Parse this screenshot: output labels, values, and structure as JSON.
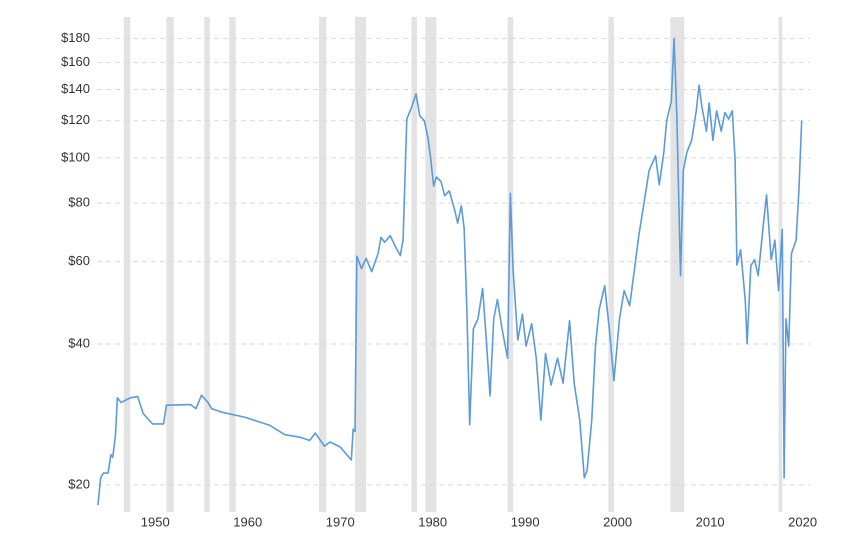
{
  "chart_data": {
    "type": "line",
    "color": "#5b9bd9",
    "shade_color": "#e3e3e3",
    "log_scale": true,
    "grid": true,
    "xlim": [
      1943.7,
      2020.8
    ],
    "xticks": [
      1950,
      1960,
      1970,
      1980,
      1990,
      2000,
      2010,
      2020
    ],
    "ylim": [
      17.5,
      200
    ],
    "yticks": [
      {
        "value": 20,
        "label": "$20"
      },
      {
        "value": 40,
        "label": "$40"
      },
      {
        "value": 60,
        "label": "$60"
      },
      {
        "value": 80,
        "label": "$80"
      },
      {
        "value": 100,
        "label": "$100"
      },
      {
        "value": 120,
        "label": "$120"
      },
      {
        "value": 140,
        "label": "$140"
      },
      {
        "value": 160,
        "label": "$160"
      },
      {
        "value": 180,
        "label": "$180"
      }
    ],
    "shaded_periods": [
      [
        1946.6,
        1947.3
      ],
      [
        1951.2,
        1952.0
      ],
      [
        1955.3,
        1955.9
      ],
      [
        1958.0,
        1958.7
      ],
      [
        1967.7,
        1968.5
      ],
      [
        1971.6,
        1972.8
      ],
      [
        1977.7,
        1978.3
      ],
      [
        1979.2,
        1980.4
      ],
      [
        1988.1,
        1988.7
      ],
      [
        1999.0,
        1999.6
      ],
      [
        2005.7,
        2007.2
      ],
      [
        2017.4,
        2017.8
      ]
    ],
    "x": [
      1943.8,
      1944.1,
      1944.4,
      1944.9,
      1945.2,
      1945.4,
      1945.7,
      1945.9,
      1946.3,
      1947.3,
      1948.1,
      1948.7,
      1949.7,
      1950.9,
      1951.2,
      1953.8,
      1954.4,
      1955.0,
      1955.7,
      1956.1,
      1957.2,
      1959.7,
      1962.4,
      1964.0,
      1965.6,
      1966.7,
      1967.3,
      1968.3,
      1968.9,
      1970.0,
      1971.2,
      1971.4,
      1971.6,
      1971.8,
      1972.3,
      1972.8,
      1973.4,
      1974.1,
      1974.4,
      1974.8,
      1975.4,
      1976.0,
      1976.5,
      1976.8,
      1977.2,
      1977.7,
      1978.2,
      1978.6,
      1979.1,
      1979.5,
      1979.8,
      1980.1,
      1980.4,
      1980.9,
      1981.3,
      1981.8,
      1982.4,
      1982.7,
      1983.1,
      1983.4,
      1983.7,
      1984.0,
      1984.4,
      1984.9,
      1985.4,
      1985.8,
      1986.2,
      1986.6,
      1987.0,
      1987.5,
      1988.1,
      1988.4,
      1988.7,
      1989.2,
      1989.7,
      1990.1,
      1990.7,
      1991.2,
      1991.7,
      1992.2,
      1992.8,
      1993.5,
      1994.1,
      1994.8,
      1995.3,
      1995.9,
      1996.4,
      1996.7,
      1997.2,
      1997.6,
      1998.0,
      1998.6,
      1999.1,
      1999.6,
      2000.2,
      2000.7,
      2001.3,
      2001.8,
      2002.3,
      2002.9,
      2003.4,
      2004.1,
      2004.5,
      2005.0,
      2005.3,
      2005.8,
      2006.1,
      2006.4,
      2006.8,
      2007.1,
      2007.5,
      2008.0,
      2008.5,
      2008.8,
      2009.1,
      2009.6,
      2009.9,
      2010.3,
      2010.7,
      2011.2,
      2011.6,
      2012.0,
      2012.4,
      2012.7,
      2012.9,
      2013.3,
      2013.8,
      2014.0,
      2014.4,
      2014.8,
      2015.2,
      2015.7,
      2016.1,
      2016.6,
      2017.0,
      2017.4,
      2017.8,
      2018.0,
      2018.2,
      2018.5,
      2018.8,
      2019.3,
      2019.6,
      2019.9
    ],
    "values": [
      18.1,
      20.7,
      21.2,
      21.2,
      23.2,
      22.9,
      25.6,
      30.7,
      30.0,
      30.7,
      30.9,
      28.4,
      27.0,
      27.0,
      29.6,
      29.7,
      29.1,
      31.1,
      30.0,
      29.1,
      28.6,
      27.9,
      26.8,
      25.6,
      25.3,
      24.9,
      25.8,
      24.2,
      24.7,
      24.1,
      22.6,
      26.3,
      26.0,
      61.6,
      58.0,
      61.0,
      57.1,
      62.5,
      67.6,
      66.0,
      68.2,
      64.4,
      61.8,
      67.0,
      121,
      128,
      137,
      123,
      120,
      110,
      99,
      87,
      91,
      89,
      83,
      85,
      77,
      72.5,
      79,
      70.7,
      47.1,
      26.9,
      43.1,
      45.3,
      52.6,
      40.8,
      31.0,
      45.3,
      49.8,
      43.1,
      37.3,
      84.0,
      57.4,
      40.8,
      46.3,
      39.6,
      44.2,
      37.3,
      27.5,
      38.2,
      32.7,
      37.3,
      33.0,
      44.9,
      33.0,
      27.5,
      20.7,
      21.5,
      27.5,
      39.6,
      47.4,
      53.3,
      43.1,
      33.4,
      45.3,
      52.0,
      48.3,
      57.4,
      68.5,
      81.2,
      93.9,
      101,
      87.6,
      103,
      120,
      132,
      180,
      123,
      56,
      94,
      103,
      109,
      126,
      143,
      129,
      114,
      131,
      109,
      126,
      114,
      125,
      121,
      126,
      99,
      59,
      63.6,
      49.6,
      40.1,
      58.8,
      60.6,
      56,
      70.3,
      83.3,
      60.6,
      66.7,
      52.0,
      70.3,
      20.7,
      45.3,
      39.6,
      62.5,
      66.7,
      85.3,
      120
    ]
  }
}
